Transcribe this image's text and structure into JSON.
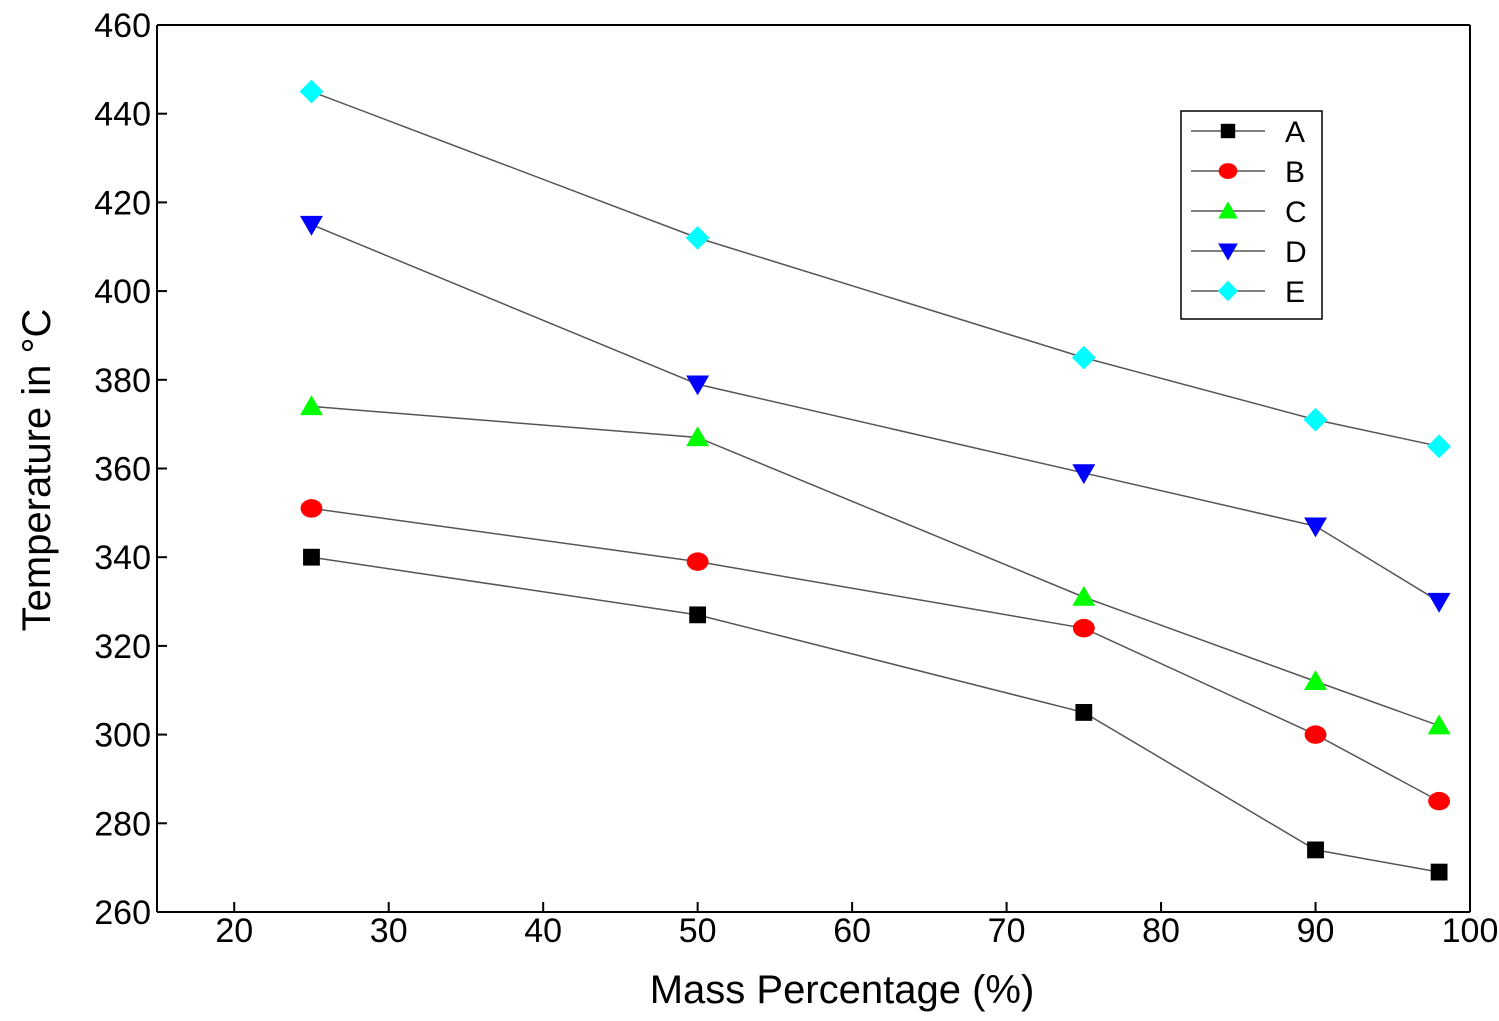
{
  "chart_data": {
    "type": "line",
    "title": "",
    "xlabel": "Mass Percentage (%)",
    "ylabel": "Temperature in °C",
    "xlim": [
      15,
      100
    ],
    "ylim": [
      260,
      460
    ],
    "xticks": [
      20,
      30,
      40,
      50,
      60,
      70,
      80,
      90,
      100
    ],
    "yticks": [
      260,
      280,
      300,
      320,
      340,
      360,
      380,
      400,
      420,
      440,
      460
    ],
    "x": [
      25,
      50,
      75,
      90,
      98
    ],
    "legend_position": "top-right",
    "series": [
      {
        "name": "A",
        "marker": "square",
        "color": "#000000",
        "values": [
          340,
          327,
          305,
          274,
          269
        ]
      },
      {
        "name": "B",
        "marker": "circle",
        "color": "#ff0000",
        "values": [
          351,
          339,
          324,
          300,
          285
        ]
      },
      {
        "name": "C",
        "marker": "triangle-up",
        "color": "#00ff00",
        "values": [
          374,
          367,
          331,
          312,
          302
        ]
      },
      {
        "name": "D",
        "marker": "triangle-down",
        "color": "#0000ff",
        "values": [
          415,
          379,
          359,
          347,
          330
        ]
      },
      {
        "name": "E",
        "marker": "diamond",
        "color": "#00ffff",
        "values": [
          445,
          412,
          385,
          371,
          365
        ]
      }
    ],
    "line_color": "#555555"
  }
}
